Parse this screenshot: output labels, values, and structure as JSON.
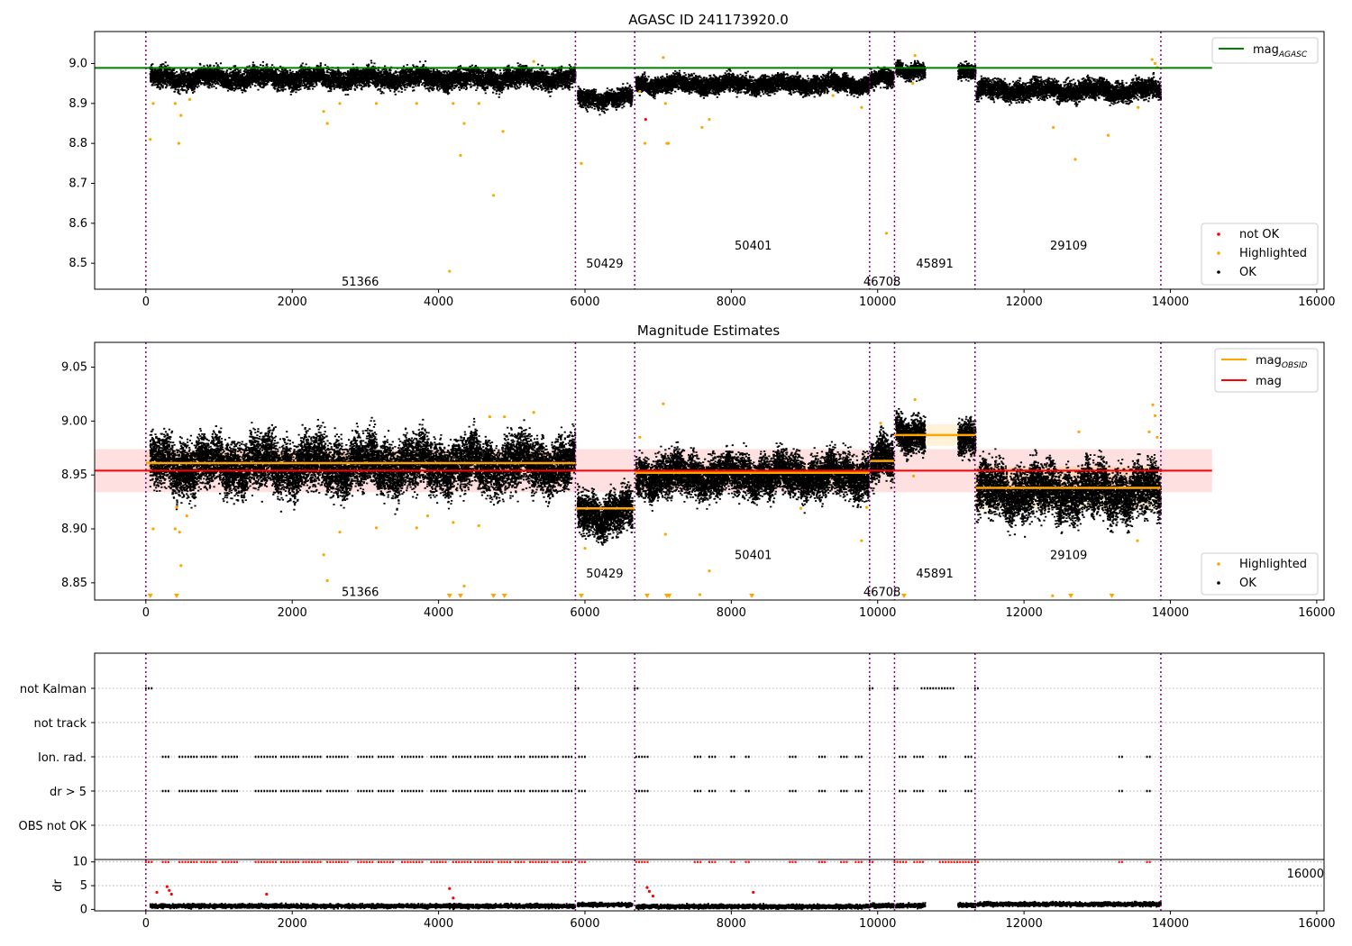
{
  "chart_data": [
    {
      "type": "scatter",
      "title": "AGASC ID 241173920.0",
      "xlim": [
        -700,
        16100
      ],
      "ylim": [
        8.435,
        9.08
      ],
      "xticks": [
        0,
        2000,
        4000,
        6000,
        8000,
        10000,
        12000,
        14000,
        16000
      ],
      "yticks": [
        8.5,
        8.6,
        8.7,
        8.8,
        8.9,
        9.0
      ],
      "obs_boundaries": [
        0,
        5870,
        6680,
        9890,
        10230,
        11330,
        13870
      ],
      "obsid_labels": [
        {
          "text": "51366",
          "x": 2930,
          "y": 8.455
        },
        {
          "text": "50429",
          "x": 6270,
          "y": 8.5
        },
        {
          "text": "50401",
          "x": 8300,
          "y": 8.545
        },
        {
          "text": "46708",
          "x": 10060,
          "y": 8.455
        },
        {
          "text": "45891",
          "x": 10780,
          "y": 8.5
        },
        {
          "text": "29109",
          "x": 12610,
          "y": 8.545
        }
      ],
      "agasc_mag": {
        "value": 8.989,
        "x": [
          -700,
          14570
        ],
        "color": "#008000"
      },
      "ok_segments": [
        {
          "x": [
            60,
            5870
          ],
          "y": 8.965,
          "spread": 0.045
        },
        {
          "x": [
            5900,
            6650
          ],
          "y": 8.915,
          "spread": 0.04
        },
        {
          "x": [
            6700,
            9880
          ],
          "y": 8.95,
          "spread": 0.04
        },
        {
          "x": [
            9900,
            10220
          ],
          "y": 8.963,
          "spread": 0.04
        },
        {
          "x": [
            10250,
            10650
          ],
          "y": 8.987,
          "spread": 0.035
        },
        {
          "x": [
            11100,
            11340
          ],
          "y": 8.985,
          "spread": 0.035
        },
        {
          "x": [
            11350,
            13870
          ],
          "y": 8.935,
          "spread": 0.045
        }
      ],
      "highlighted_points": [
        [
          60,
          8.81
        ],
        [
          100,
          8.9
        ],
        [
          400,
          8.9
        ],
        [
          450,
          8.8
        ],
        [
          480,
          8.87
        ],
        [
          600,
          8.91
        ],
        [
          2430,
          8.88
        ],
        [
          2480,
          8.85
        ],
        [
          2650,
          8.9
        ],
        [
          3150,
          8.9
        ],
        [
          3700,
          8.9
        ],
        [
          4150,
          8.48
        ],
        [
          4200,
          8.9
        ],
        [
          4300,
          8.77
        ],
        [
          4350,
          8.85
        ],
        [
          4550,
          8.9
        ],
        [
          4750,
          8.67
        ],
        [
          4880,
          8.83
        ],
        [
          5300,
          9.005
        ],
        [
          5950,
          8.75
        ],
        [
          6750,
          8.93
        ],
        [
          6820,
          8.8
        ],
        [
          7070,
          9.015
        ],
        [
          7100,
          8.9
        ],
        [
          7120,
          8.8
        ],
        [
          7140,
          8.8
        ],
        [
          7600,
          8.84
        ],
        [
          7700,
          8.86
        ],
        [
          9390,
          8.92
        ],
        [
          9780,
          8.89
        ],
        [
          10120,
          8.575
        ],
        [
          10480,
          8.95
        ],
        [
          10510,
          9.02
        ],
        [
          12400,
          8.84
        ],
        [
          12700,
          8.76
        ],
        [
          13150,
          8.82
        ],
        [
          13560,
          8.89
        ],
        [
          13750,
          9.01
        ],
        [
          13790,
          9.0
        ],
        [
          13820,
          8.99
        ]
      ],
      "not_ok_points": [
        [
          6830,
          8.86
        ]
      ],
      "legend": [
        {
          "label": "mag$_{AGASC}$",
          "text": "mag",
          "sub": "AGASC",
          "color": "#008000"
        },
        {
          "label": "not OK",
          "color": "#ff0000"
        },
        {
          "label": "Highlighted",
          "color": "#ffa500"
        },
        {
          "label": "OK",
          "color": "#000000"
        }
      ]
    },
    {
      "type": "scatter",
      "title": "Magnitude Estimates",
      "xlim": [
        -700,
        16100
      ],
      "ylim": [
        8.834,
        9.073
      ],
      "xticks": [
        0,
        2000,
        4000,
        6000,
        8000,
        10000,
        12000,
        14000,
        16000
      ],
      "yticks": [
        8.85,
        8.9,
        8.95,
        9.0,
        9.05
      ],
      "obs_boundaries": [
        0,
        5870,
        6680,
        9890,
        10230,
        11330,
        13870
      ],
      "obsid_labels": [
        {
          "text": "51366",
          "x": 2930,
          "y": 8.842
        },
        {
          "text": "50429",
          "x": 6270,
          "y": 8.859
        },
        {
          "text": "50401",
          "x": 8300,
          "y": 8.876
        },
        {
          "text": "46708",
          "x": 10060,
          "y": 8.842
        },
        {
          "text": "45891",
          "x": 10780,
          "y": 8.859
        },
        {
          "text": "29109",
          "x": 12610,
          "y": 8.876
        }
      ],
      "mag": {
        "value": 8.954,
        "band": [
          8.934,
          8.974
        ],
        "x": [
          -700,
          14570
        ],
        "color": "#ff0000"
      },
      "mag_obsid": [
        {
          "x": [
            0,
            5870
          ],
          "y": 8.961,
          "band": [
            8.951,
            8.971
          ]
        },
        {
          "x": [
            5870,
            6680
          ],
          "y": 8.919,
          "band": [
            8.914,
            8.924
          ]
        },
        {
          "x": [
            6680,
            9890
          ],
          "y": 8.952,
          "band": [
            8.944,
            8.96
          ]
        },
        {
          "x": [
            9890,
            10230
          ],
          "y": 8.963,
          "band": [
            8.956,
            8.97
          ]
        },
        {
          "x": [
            10230,
            11330
          ],
          "y": 8.987,
          "band": [
            8.977,
            8.997
          ]
        },
        {
          "x": [
            11330,
            13870
          ],
          "y": 8.938,
          "band": [
            8.918,
            8.958
          ]
        }
      ],
      "ok_segments": [
        {
          "x": [
            60,
            5870
          ],
          "y": 8.96,
          "spread": 0.045
        },
        {
          "x": [
            5900,
            6650
          ],
          "y": 8.915,
          "spread": 0.035
        },
        {
          "x": [
            6700,
            9880
          ],
          "y": 8.95,
          "spread": 0.035
        },
        {
          "x": [
            9900,
            10220
          ],
          "y": 8.963,
          "spread": 0.035
        },
        {
          "x": [
            10250,
            10650
          ],
          "y": 8.99,
          "spread": 0.03
        },
        {
          "x": [
            11100,
            11340
          ],
          "y": 8.988,
          "spread": 0.03
        },
        {
          "x": [
            11350,
            13870
          ],
          "y": 8.935,
          "spread": 0.045
        }
      ],
      "highlighted_points": [
        [
          100,
          8.9
        ],
        [
          400,
          8.9
        ],
        [
          420,
          8.92
        ],
        [
          460,
          8.897
        ],
        [
          480,
          8.866
        ],
        [
          560,
          8.912
        ],
        [
          2430,
          8.876
        ],
        [
          2480,
          8.852
        ],
        [
          2650,
          8.897
        ],
        [
          3150,
          8.901
        ],
        [
          3700,
          8.901
        ],
        [
          3850,
          8.912
        ],
        [
          4200,
          8.906
        ],
        [
          4350,
          8.847
        ],
        [
          4550,
          8.903
        ],
        [
          4700,
          9.004
        ],
        [
          4900,
          9.004
        ],
        [
          5300,
          9.008
        ],
        [
          6000,
          8.882
        ],
        [
          6750,
          8.985
        ],
        [
          7070,
          9.016
        ],
        [
          7100,
          8.895
        ],
        [
          7700,
          8.861
        ],
        [
          7570,
          8.839
        ],
        [
          8950,
          8.919
        ],
        [
          9780,
          8.889
        ],
        [
          9850,
          8.92
        ],
        [
          10040,
          8.998
        ],
        [
          10510,
          9.02
        ],
        [
          10490,
          8.949
        ],
        [
          12390,
          8.838
        ],
        [
          12750,
          8.99
        ],
        [
          13550,
          8.889
        ],
        [
          13760,
          9.015
        ],
        [
          13790,
          9.005
        ],
        [
          13710,
          8.99
        ],
        [
          13820,
          8.985
        ]
      ],
      "lowlim_x": [
        60,
        420,
        4150,
        4300,
        4750,
        4900,
        5950,
        6850,
        7120,
        7150,
        8280,
        10360,
        12640,
        13200
      ],
      "legend": [
        {
          "label": "mag$_{OBSID}$",
          "text": "mag",
          "sub": "OBSID",
          "color": "#ffa500"
        },
        {
          "label": "mag",
          "color": "#ff0000"
        },
        {
          "label": "Highlighted",
          "color": "#ffa500"
        },
        {
          "label": "OK",
          "color": "#000000"
        }
      ]
    },
    {
      "type": "scatter",
      "title": "",
      "xlim": [
        -700,
        16100
      ],
      "categories": [
        "not Kalman",
        "not track",
        "Ion. rad.",
        "dr > 5",
        "OBS not OK"
      ],
      "flags": {
        "not Kalman": [
          [
            0,
            80
          ],
          [
            5870,
            5920
          ],
          [
            6680,
            6730
          ],
          [
            9890,
            9940
          ],
          [
            10230,
            10300
          ],
          [
            10600,
            11050
          ],
          [
            11330,
            11400
          ]
        ],
        "not track": [],
        "Ion. rad.": [
          [
            230,
            320
          ],
          [
            460,
            700
          ],
          [
            760,
            960
          ],
          [
            1050,
            1250
          ],
          [
            1500,
            1780
          ],
          [
            1850,
            2120
          ],
          [
            2150,
            2400
          ],
          [
            2480,
            2780
          ],
          [
            2900,
            3100
          ],
          [
            3180,
            3400
          ],
          [
            3500,
            3800
          ],
          [
            3900,
            4100
          ],
          [
            4200,
            4450
          ],
          [
            4500,
            4750
          ],
          [
            4820,
            5000
          ],
          [
            5050,
            5200
          ],
          [
            5250,
            5500
          ],
          [
            5550,
            5650
          ],
          [
            5700,
            5850
          ],
          [
            5920,
            6000
          ],
          [
            6700,
            6880
          ],
          [
            7500,
            7600
          ],
          [
            7700,
            7800
          ],
          [
            8000,
            8050
          ],
          [
            8200,
            8250
          ],
          [
            8800,
            8900
          ],
          [
            9200,
            9300
          ],
          [
            9500,
            9600
          ],
          [
            9700,
            9800
          ],
          [
            10300,
            10400
          ],
          [
            10500,
            10650
          ],
          [
            10850,
            10950
          ],
          [
            11200,
            11300
          ],
          [
            13300,
            13350
          ],
          [
            13680,
            13720
          ]
        ],
        "dr > 5": [
          [
            230,
            320
          ],
          [
            460,
            700
          ],
          [
            760,
            960
          ],
          [
            1050,
            1250
          ],
          [
            1500,
            1780
          ],
          [
            1850,
            2120
          ],
          [
            2150,
            2400
          ],
          [
            2480,
            2780
          ],
          [
            2900,
            3100
          ],
          [
            3180,
            3400
          ],
          [
            3500,
            3800
          ],
          [
            3900,
            4100
          ],
          [
            4200,
            4450
          ],
          [
            4500,
            4750
          ],
          [
            4820,
            5000
          ],
          [
            5050,
            5200
          ],
          [
            5250,
            5500
          ],
          [
            5550,
            5650
          ],
          [
            5700,
            5850
          ],
          [
            5920,
            6000
          ],
          [
            6700,
            6880
          ],
          [
            7500,
            7600
          ],
          [
            7700,
            7800
          ],
          [
            8000,
            8050
          ],
          [
            8200,
            8250
          ],
          [
            8800,
            8900
          ],
          [
            9200,
            9300
          ],
          [
            9500,
            9600
          ],
          [
            9700,
            9800
          ],
          [
            10300,
            10400
          ],
          [
            10500,
            10650
          ],
          [
            10850,
            10950
          ],
          [
            11200,
            11300
          ],
          [
            13300,
            13350
          ],
          [
            13680,
            13720
          ]
        ],
        "OBS not OK": []
      },
      "obs_boundaries": [
        0,
        5870,
        6680,
        9890,
        10230,
        11330,
        13870
      ],
      "overlap_ticklabel": "16000"
    },
    {
      "type": "scatter",
      "title": "",
      "ylabel": "dr",
      "xlim": [
        -700,
        16100
      ],
      "ylim": [
        -0.3,
        10.5
      ],
      "yticks": [
        0,
        5,
        10
      ],
      "xticks": [
        0,
        2000,
        4000,
        6000,
        8000,
        10000,
        12000,
        14000,
        16000
      ],
      "obs_boundaries": [
        0,
        5870,
        6680,
        9890,
        10230,
        11330,
        13870
      ],
      "dr_segments": [
        {
          "x": [
            60,
            5870
          ],
          "y": 0.7
        },
        {
          "x": [
            5900,
            6650
          ],
          "y": 1.0
        },
        {
          "x": [
            6700,
            9880
          ],
          "y": 0.6
        },
        {
          "x": [
            9900,
            10220
          ],
          "y": 0.8
        },
        {
          "x": [
            10250,
            10650
          ],
          "y": 0.8
        },
        {
          "x": [
            11100,
            11340
          ],
          "y": 0.9
        },
        {
          "x": [
            11350,
            13870
          ],
          "y": 1.1
        }
      ],
      "red_points": [
        [
          150,
          3.6
        ],
        [
          290,
          4.8
        ],
        [
          320,
          4.0
        ],
        [
          350,
          3.2
        ],
        [
          1650,
          3.2
        ],
        [
          4150,
          4.4
        ],
        [
          4200,
          2.4
        ],
        [
          6850,
          4.6
        ],
        [
          6880,
          3.8
        ],
        [
          6930,
          2.8
        ],
        [
          8300,
          3.6
        ]
      ],
      "red_top_segments": [
        [
          0,
          80
        ],
        [
          230,
          320
        ],
        [
          460,
          700
        ],
        [
          760,
          960
        ],
        [
          1050,
          1250
        ],
        [
          1500,
          1780
        ],
        [
          1850,
          2120
        ],
        [
          2150,
          2400
        ],
        [
          2480,
          2780
        ],
        [
          2900,
          3100
        ],
        [
          3180,
          3400
        ],
        [
          3500,
          3800
        ],
        [
          3900,
          4100
        ],
        [
          4200,
          4450
        ],
        [
          4500,
          4750
        ],
        [
          4820,
          5000
        ],
        [
          5050,
          5200
        ],
        [
          5250,
          5500
        ],
        [
          5550,
          5650
        ],
        [
          5700,
          5850
        ],
        [
          5920,
          6000
        ],
        [
          6700,
          6880
        ],
        [
          7500,
          7600
        ],
        [
          7700,
          7800
        ],
        [
          8000,
          8050
        ],
        [
          8200,
          8250
        ],
        [
          8800,
          8900
        ],
        [
          9200,
          9300
        ],
        [
          9500,
          9600
        ],
        [
          9700,
          9800
        ],
        [
          9890,
          9940
        ],
        [
          10230,
          10400
        ],
        [
          10500,
          10650
        ],
        [
          10850,
          11300
        ],
        [
          11330,
          11400
        ],
        [
          13300,
          13350
        ],
        [
          13680,
          13720
        ]
      ]
    }
  ]
}
